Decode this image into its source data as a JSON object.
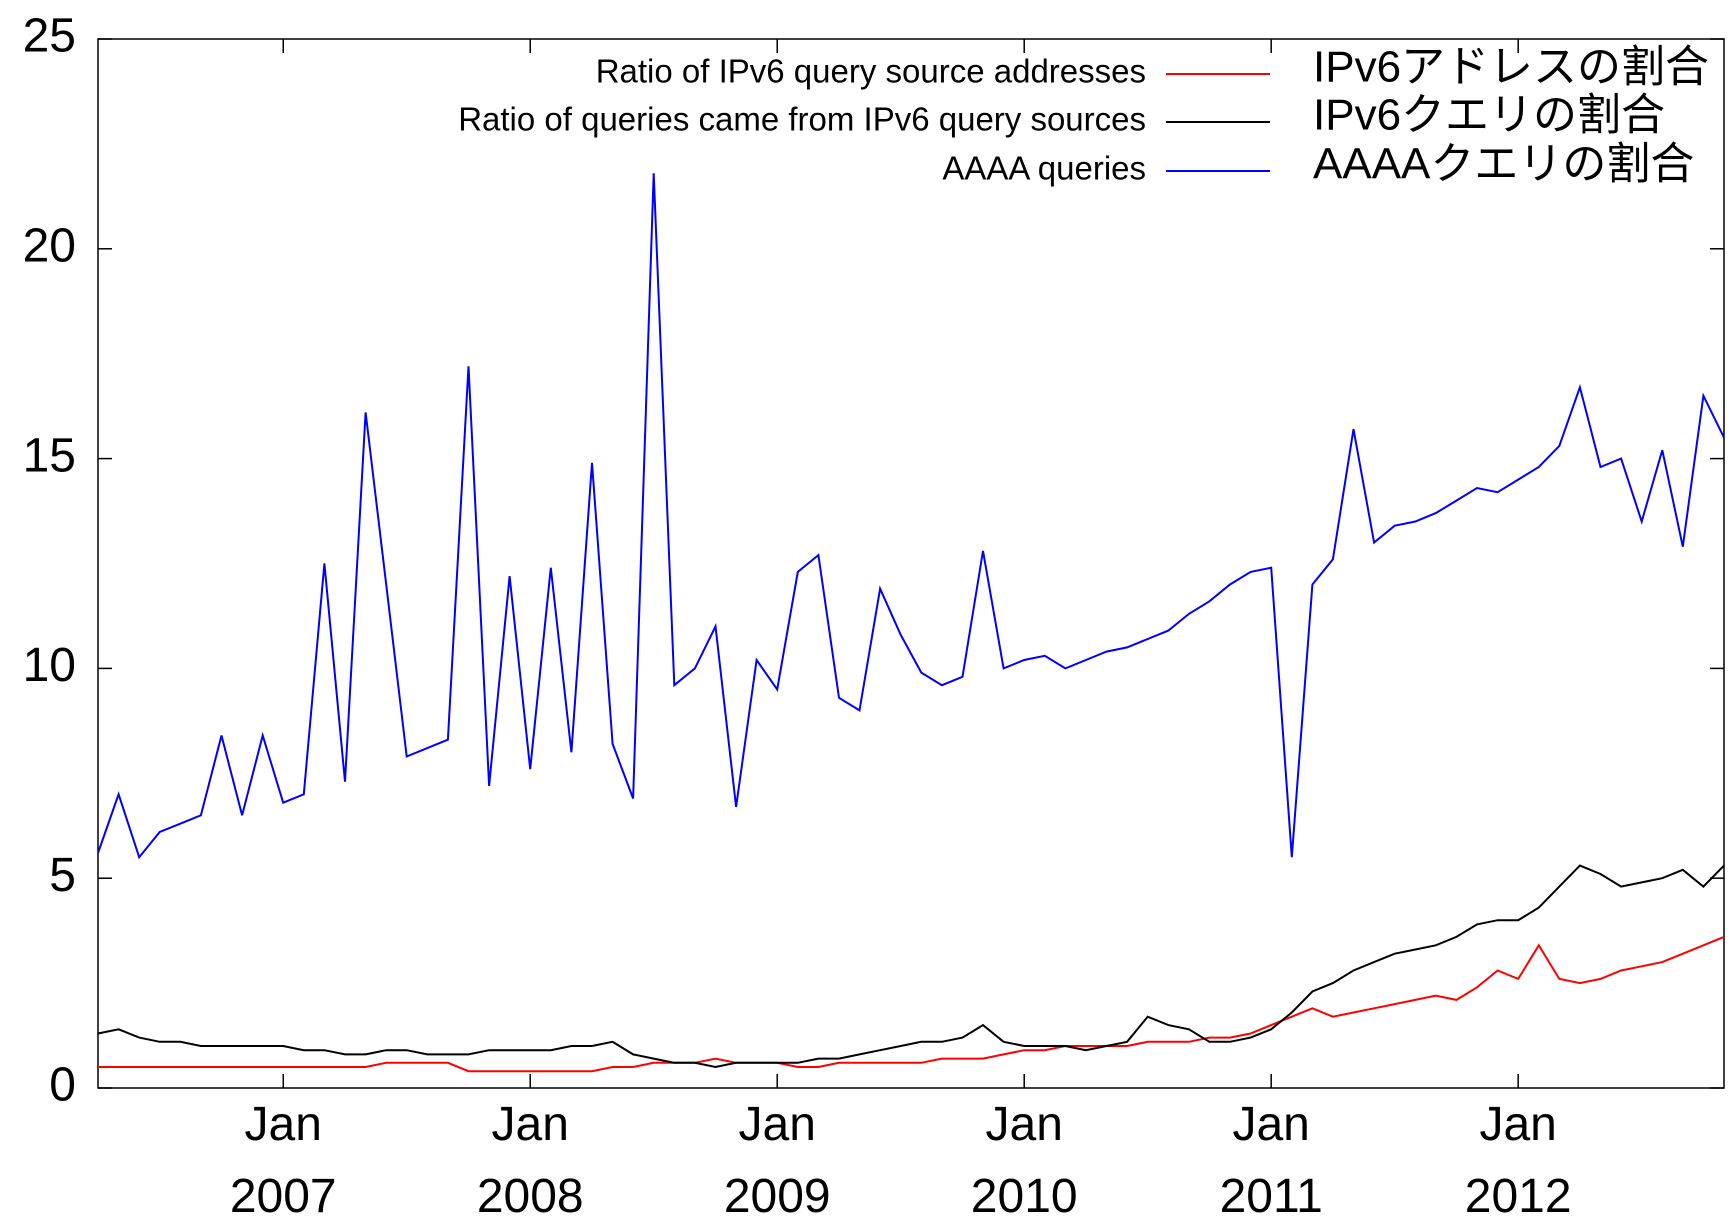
{
  "chart_data": {
    "type": "line",
    "x": [
      "2006-04",
      "2006-05",
      "2006-06",
      "2006-07",
      "2006-08",
      "2006-09",
      "2006-10",
      "2006-11",
      "2006-12",
      "2007-01",
      "2007-02",
      "2007-03",
      "2007-04",
      "2007-05",
      "2007-06",
      "2007-07",
      "2007-08",
      "2007-09",
      "2007-10",
      "2007-11",
      "2007-12",
      "2008-01",
      "2008-02",
      "2008-03",
      "2008-04",
      "2008-05",
      "2008-06",
      "2008-07",
      "2008-08",
      "2008-09",
      "2008-10",
      "2008-11",
      "2008-12",
      "2009-01",
      "2009-02",
      "2009-03",
      "2009-04",
      "2009-05",
      "2009-06",
      "2009-07",
      "2009-08",
      "2009-09",
      "2009-10",
      "2009-11",
      "2009-12",
      "2010-01",
      "2010-02",
      "2010-03",
      "2010-04",
      "2010-05",
      "2010-06",
      "2010-07",
      "2010-08",
      "2010-09",
      "2010-10",
      "2010-11",
      "2010-12",
      "2011-01",
      "2011-02",
      "2011-03",
      "2011-04",
      "2011-05",
      "2011-06",
      "2011-07",
      "2011-08",
      "2011-09",
      "2011-10",
      "2011-11",
      "2011-12",
      "2012-01",
      "2012-02",
      "2012-03",
      "2012-04",
      "2012-05",
      "2012-06",
      "2012-07",
      "2012-08",
      "2012-09",
      "2012-10",
      "2012-11"
    ],
    "series": [
      {
        "name": "Ratio of IPv6 query source addresses",
        "color": "#ff0000",
        "values": [
          0.5,
          0.5,
          0.5,
          0.5,
          0.5,
          0.5,
          0.5,
          0.5,
          0.5,
          0.5,
          0.5,
          0.5,
          0.5,
          0.5,
          0.6,
          0.6,
          0.6,
          0.6,
          0.4,
          0.4,
          0.4,
          0.4,
          0.4,
          0.4,
          0.4,
          0.5,
          0.5,
          0.6,
          0.6,
          0.6,
          0.7,
          0.6,
          0.6,
          0.6,
          0.5,
          0.5,
          0.6,
          0.6,
          0.6,
          0.6,
          0.6,
          0.7,
          0.7,
          0.7,
          0.8,
          0.9,
          0.9,
          1.0,
          1.0,
          1.0,
          1.0,
          1.1,
          1.1,
          1.1,
          1.2,
          1.2,
          1.3,
          1.5,
          1.7,
          1.9,
          1.7,
          1.8,
          1.9,
          2.0,
          2.1,
          2.2,
          2.1,
          2.4,
          2.8,
          2.6,
          3.4,
          2.6,
          2.5,
          2.6,
          2.8,
          2.9,
          3.0,
          3.2,
          3.4,
          3.6
        ]
      },
      {
        "name": "Ratio of queries came from IPv6 query sources",
        "color": "#000000",
        "values": [
          1.3,
          1.4,
          1.2,
          1.1,
          1.1,
          1.0,
          1.0,
          1.0,
          1.0,
          1.0,
          0.9,
          0.9,
          0.8,
          0.8,
          0.9,
          0.9,
          0.8,
          0.8,
          0.8,
          0.9,
          0.9,
          0.9,
          0.9,
          1.0,
          1.0,
          1.1,
          0.8,
          0.7,
          0.6,
          0.6,
          0.5,
          0.6,
          0.6,
          0.6,
          0.6,
          0.7,
          0.7,
          0.8,
          0.9,
          1.0,
          1.1,
          1.1,
          1.2,
          1.5,
          1.1,
          1.0,
          1.0,
          1.0,
          0.9,
          1.0,
          1.1,
          1.7,
          1.5,
          1.4,
          1.1,
          1.1,
          1.2,
          1.4,
          1.8,
          2.3,
          2.5,
          2.8,
          3.0,
          3.2,
          3.3,
          3.4,
          3.6,
          3.9,
          4.0,
          4.0,
          4.3,
          4.8,
          5.3,
          5.1,
          4.8,
          4.9,
          5.0,
          5.2,
          4.8,
          5.3
        ]
      },
      {
        "name": "AAAA queries",
        "color": "#0000ff",
        "values": [
          5.6,
          7.0,
          5.5,
          6.1,
          6.3,
          6.5,
          8.4,
          6.5,
          8.4,
          6.8,
          7.0,
          12.5,
          7.3,
          16.1,
          12.0,
          7.9,
          8.1,
          8.3,
          17.2,
          7.2,
          12.2,
          7.6,
          12.4,
          8.0,
          14.9,
          8.2,
          6.9,
          21.8,
          9.6,
          10.0,
          11.0,
          6.7,
          10.2,
          9.5,
          12.3,
          12.7,
          9.3,
          9.0,
          11.9,
          10.8,
          9.9,
          9.6,
          9.8,
          12.8,
          10.0,
          10.2,
          10.3,
          10.0,
          10.2,
          10.4,
          10.5,
          10.7,
          10.9,
          11.3,
          11.6,
          12.0,
          12.3,
          12.4,
          5.5,
          12.0,
          12.6,
          15.7,
          13.0,
          13.4,
          13.5,
          13.7,
          14.0,
          14.3,
          14.2,
          14.5,
          14.8,
          15.3,
          16.7,
          14.8,
          15.0,
          13.5,
          15.2,
          12.9,
          16.5,
          15.5
        ]
      }
    ],
    "annotations": [
      "IPv6アドレスの割合",
      "IPv6クエリの割合",
      "AAAAクエリの割合"
    ],
    "xlim": [
      "2006-04",
      "2012-11"
    ],
    "xticks": [
      {
        "value": "2007-01",
        "label": "Jan 2007"
      },
      {
        "value": "2008-01",
        "label": "Jan 2008"
      },
      {
        "value": "2009-01",
        "label": "Jan 2009"
      },
      {
        "value": "2010-01",
        "label": "Jan 2010"
      },
      {
        "value": "2011-01",
        "label": "Jan 2011"
      },
      {
        "value": "2012-01",
        "label": "Jan 2012"
      }
    ],
    "ylim": [
      0,
      25
    ],
    "yticks": [
      0,
      5,
      10,
      15,
      20,
      25
    ],
    "legend": "top-right"
  }
}
